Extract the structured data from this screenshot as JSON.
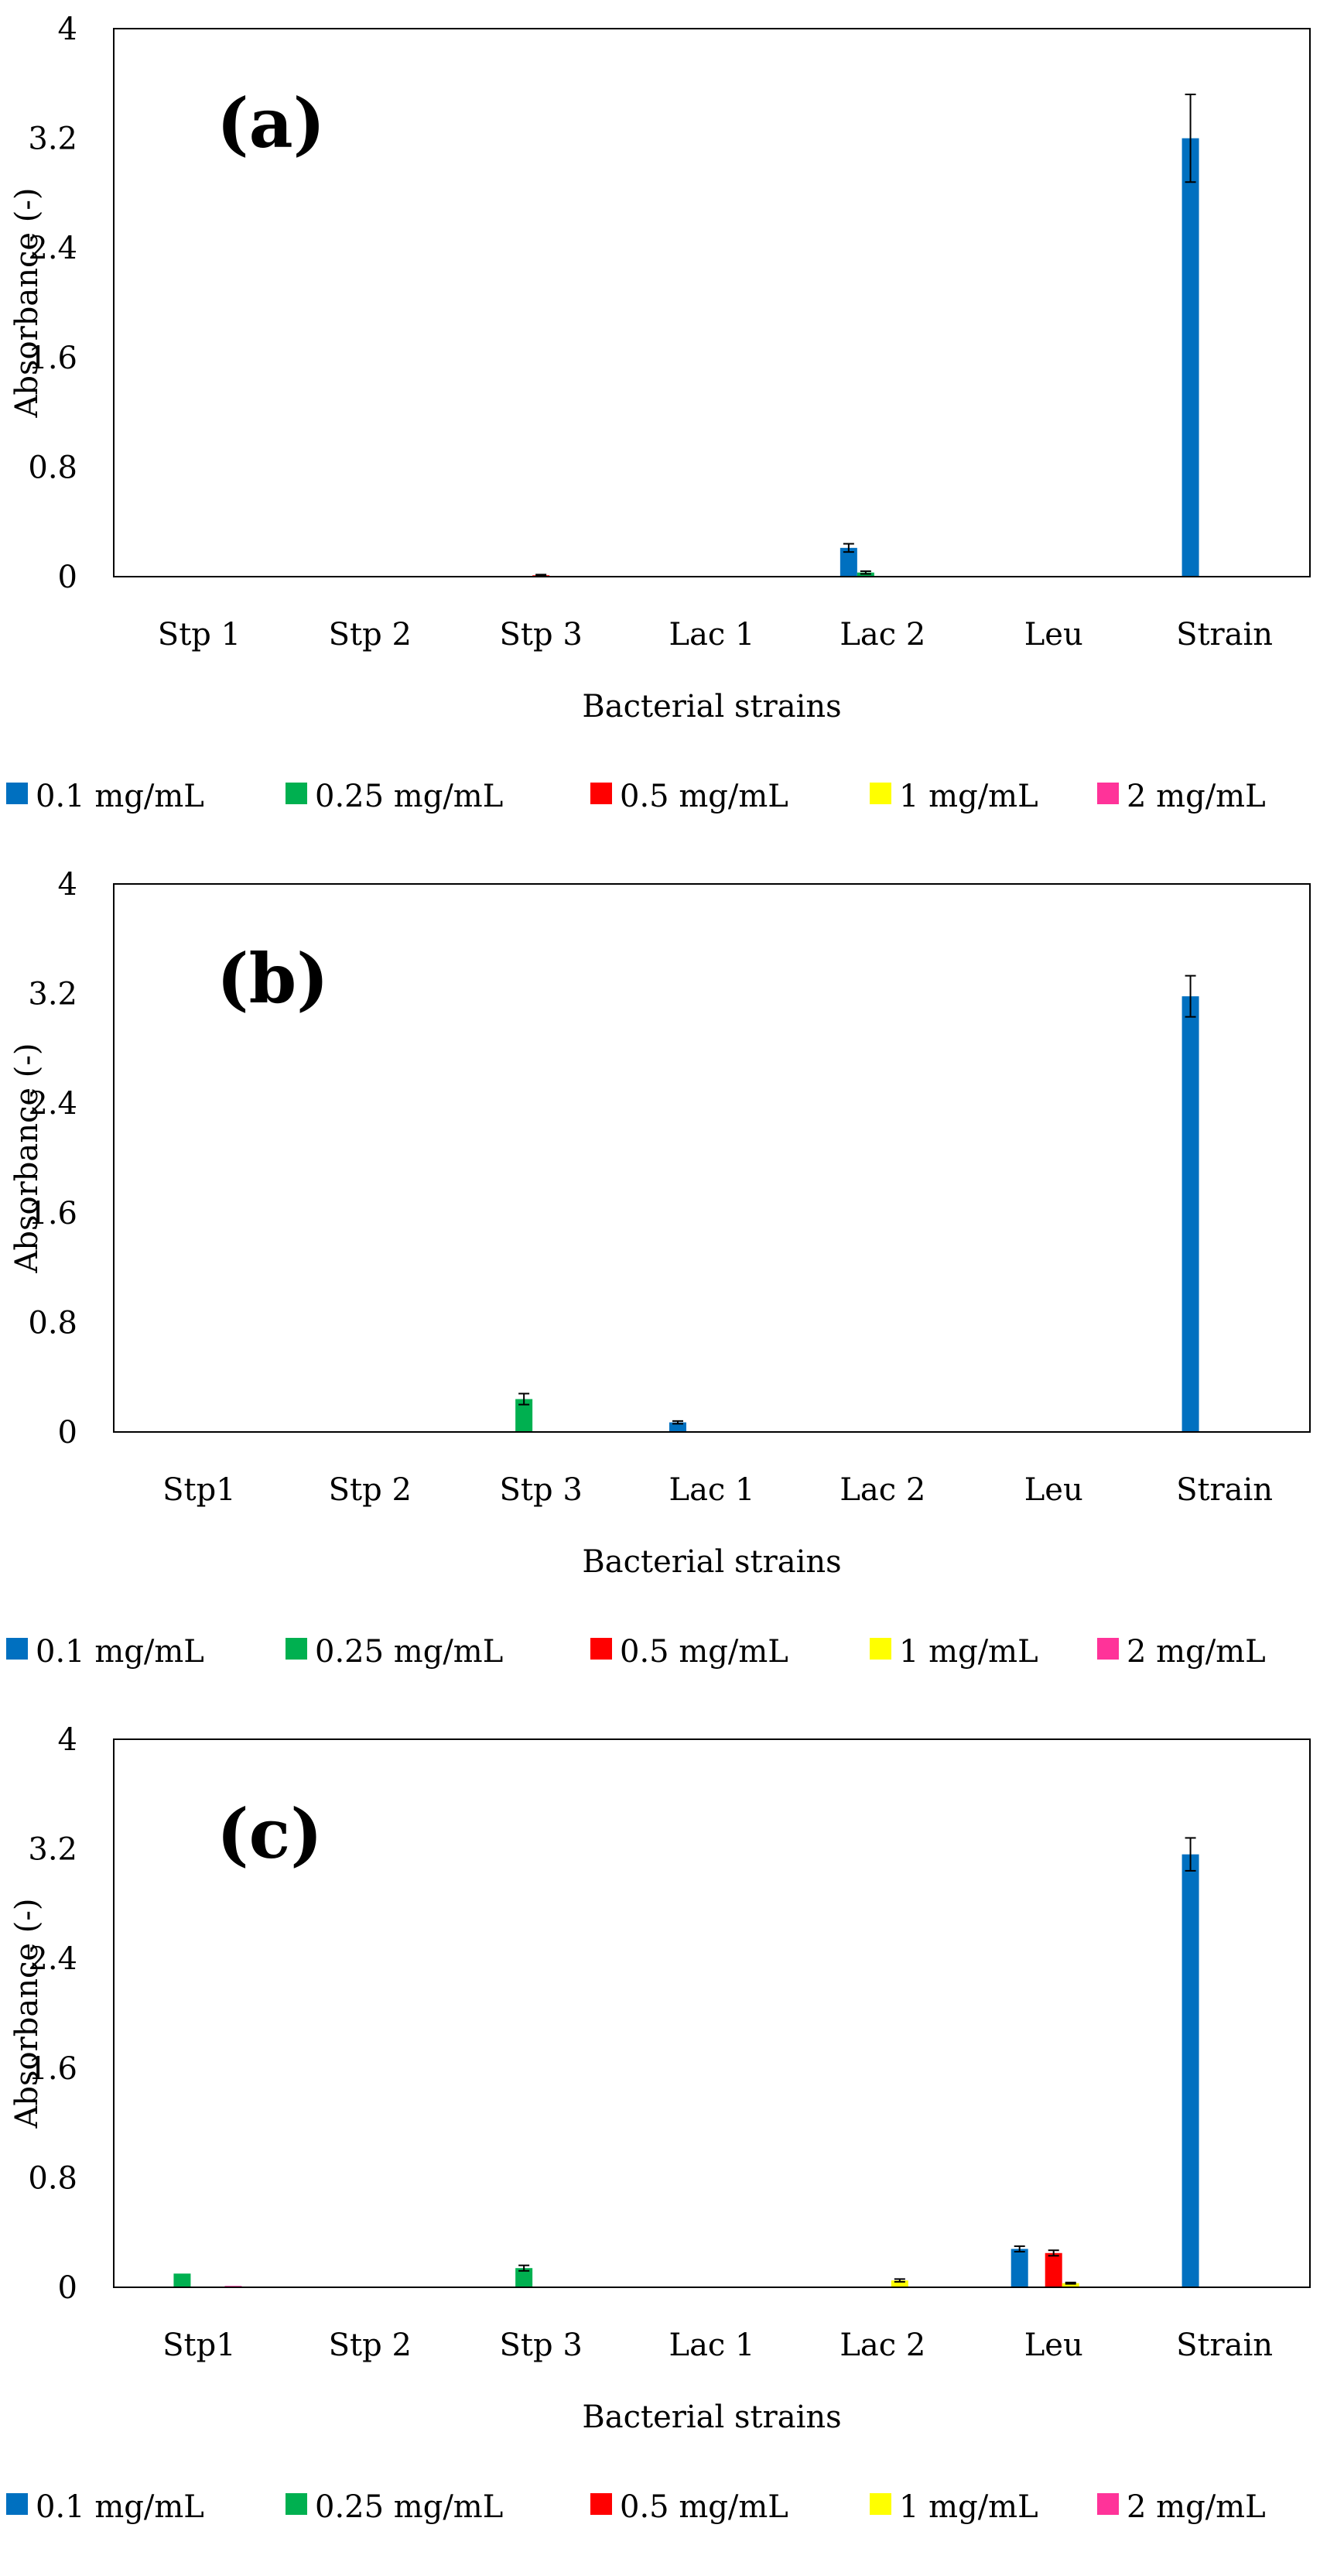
{
  "colors": {
    "series": [
      "#0070C0",
      "#00B050",
      "#FF0000",
      "#FFFF00",
      "#FF3399"
    ],
    "axis": "#000000",
    "plot_border": "#000000",
    "error_bar": "#000000"
  },
  "chart_data": [
    {
      "type": "bar",
      "panel_label": "(a)",
      "xlabel": "Bacterial strains",
      "ylabel": "Absorbance (-)",
      "ylim": [
        0,
        4
      ],
      "yticks": [
        "0",
        "0.8",
        "1.6",
        "2.4",
        "3.2",
        "4"
      ],
      "ytick_values": [
        0,
        0.8,
        1.6,
        2.4,
        3.2,
        4
      ],
      "grid": false,
      "legend_position": "bottom",
      "categories": [
        "Stp 1",
        "Stp 2",
        "Stp 3",
        "Lac 1",
        "Lac 2",
        "Leu",
        "Strain"
      ],
      "series": [
        {
          "name": "0.1 mg/mL",
          "values": [
            0,
            0,
            0,
            0,
            0.21,
            0,
            3.2
          ],
          "errors": [
            0,
            0,
            0,
            0,
            0.03,
            0,
            0.32
          ]
        },
        {
          "name": "0.25 mg/mL",
          "values": [
            0,
            0,
            0,
            0,
            0.03,
            0,
            0
          ],
          "errors": [
            0,
            0,
            0,
            0,
            0.01,
            0,
            0
          ]
        },
        {
          "name": "0.5 mg/mL",
          "values": [
            0,
            0,
            0.01,
            0,
            0,
            0,
            0
          ],
          "errors": [
            0,
            0,
            0.005,
            0,
            0,
            0,
            0
          ]
        },
        {
          "name": "1 mg/mL",
          "values": [
            0,
            0,
            0,
            0,
            0,
            0,
            0
          ],
          "errors": [
            0,
            0,
            0,
            0,
            0,
            0,
            0
          ]
        },
        {
          "name": "2 mg/mL",
          "values": [
            0,
            0,
            0,
            0,
            0,
            0,
            0
          ],
          "errors": [
            0,
            0,
            0,
            0,
            0,
            0,
            0
          ]
        }
      ]
    },
    {
      "type": "bar",
      "panel_label": "(b)",
      "xlabel": "Bacterial strains",
      "ylabel": "Absorbance (-)",
      "ylim": [
        0,
        4
      ],
      "yticks": [
        "0",
        "0.8",
        "1.6",
        "2.4",
        "3.2",
        "4"
      ],
      "ytick_values": [
        0,
        0.8,
        1.6,
        2.4,
        3.2,
        4
      ],
      "grid": false,
      "legend_position": "bottom",
      "categories": [
        "Stp1",
        "Stp 2",
        "Stp 3",
        "Lac 1",
        "Lac 2",
        "Leu",
        "Strain"
      ],
      "series": [
        {
          "name": "0.1 mg/mL",
          "values": [
            0,
            0,
            0,
            0.07,
            0,
            0,
            3.18
          ],
          "errors": [
            0,
            0,
            0,
            0.01,
            0,
            0,
            0.15
          ]
        },
        {
          "name": "0.25 mg/mL",
          "values": [
            0,
            0,
            0.24,
            0,
            0,
            0,
            0
          ],
          "errors": [
            0,
            0,
            0.04,
            0,
            0,
            0,
            0
          ]
        },
        {
          "name": "0.5 mg/mL",
          "values": [
            0,
            0,
            0,
            0,
            0,
            0,
            0
          ],
          "errors": [
            0,
            0,
            0,
            0,
            0,
            0,
            0
          ]
        },
        {
          "name": "1 mg/mL",
          "values": [
            0,
            0,
            0,
            0,
            0,
            0,
            0
          ],
          "errors": [
            0,
            0,
            0,
            0,
            0,
            0,
            0
          ]
        },
        {
          "name": "2 mg/mL",
          "values": [
            0.005,
            0,
            0,
            0,
            0,
            0,
            0
          ],
          "errors": [
            0,
            0,
            0,
            0,
            0,
            0,
            0
          ]
        }
      ]
    },
    {
      "type": "bar",
      "panel_label": "(c)",
      "xlabel": "Bacterial strains",
      "ylabel": "Absorbance (-)",
      "ylim": [
        0,
        4
      ],
      "yticks": [
        "0",
        "0.8",
        "1.6",
        "2.4",
        "3.2",
        "4"
      ],
      "ytick_values": [
        0,
        0.8,
        1.6,
        2.4,
        3.2,
        4
      ],
      "grid": false,
      "legend_position": "bottom",
      "categories": [
        "Stp1",
        "Stp 2",
        "Stp 3",
        "Lac 1",
        "Lac 2",
        "Leu",
        "Strain"
      ],
      "series": [
        {
          "name": "0.1 mg/mL",
          "values": [
            0,
            0,
            0,
            0,
            0,
            0.28,
            3.16
          ],
          "errors": [
            0,
            0,
            0,
            0,
            0,
            0.02,
            0.12
          ]
        },
        {
          "name": "0.25 mg/mL",
          "values": [
            0.1,
            0,
            0.14,
            0,
            0,
            0,
            0
          ],
          "errors": [
            0,
            0,
            0.02,
            0,
            0,
            0,
            0
          ]
        },
        {
          "name": "0.5 mg/mL",
          "values": [
            0,
            0,
            0,
            0,
            0,
            0.25,
            0
          ],
          "errors": [
            0,
            0,
            0,
            0,
            0,
            0.02,
            0
          ]
        },
        {
          "name": "1 mg/mL",
          "values": [
            0,
            0,
            0,
            0,
            0.05,
            0.03,
            0
          ],
          "errors": [
            0,
            0,
            0,
            0,
            0.01,
            0.005,
            0
          ]
        },
        {
          "name": "2 mg/mL",
          "values": [
            0.01,
            0,
            0,
            0,
            0,
            0,
            0
          ],
          "errors": [
            0,
            0,
            0,
            0,
            0,
            0,
            0
          ]
        }
      ]
    }
  ]
}
